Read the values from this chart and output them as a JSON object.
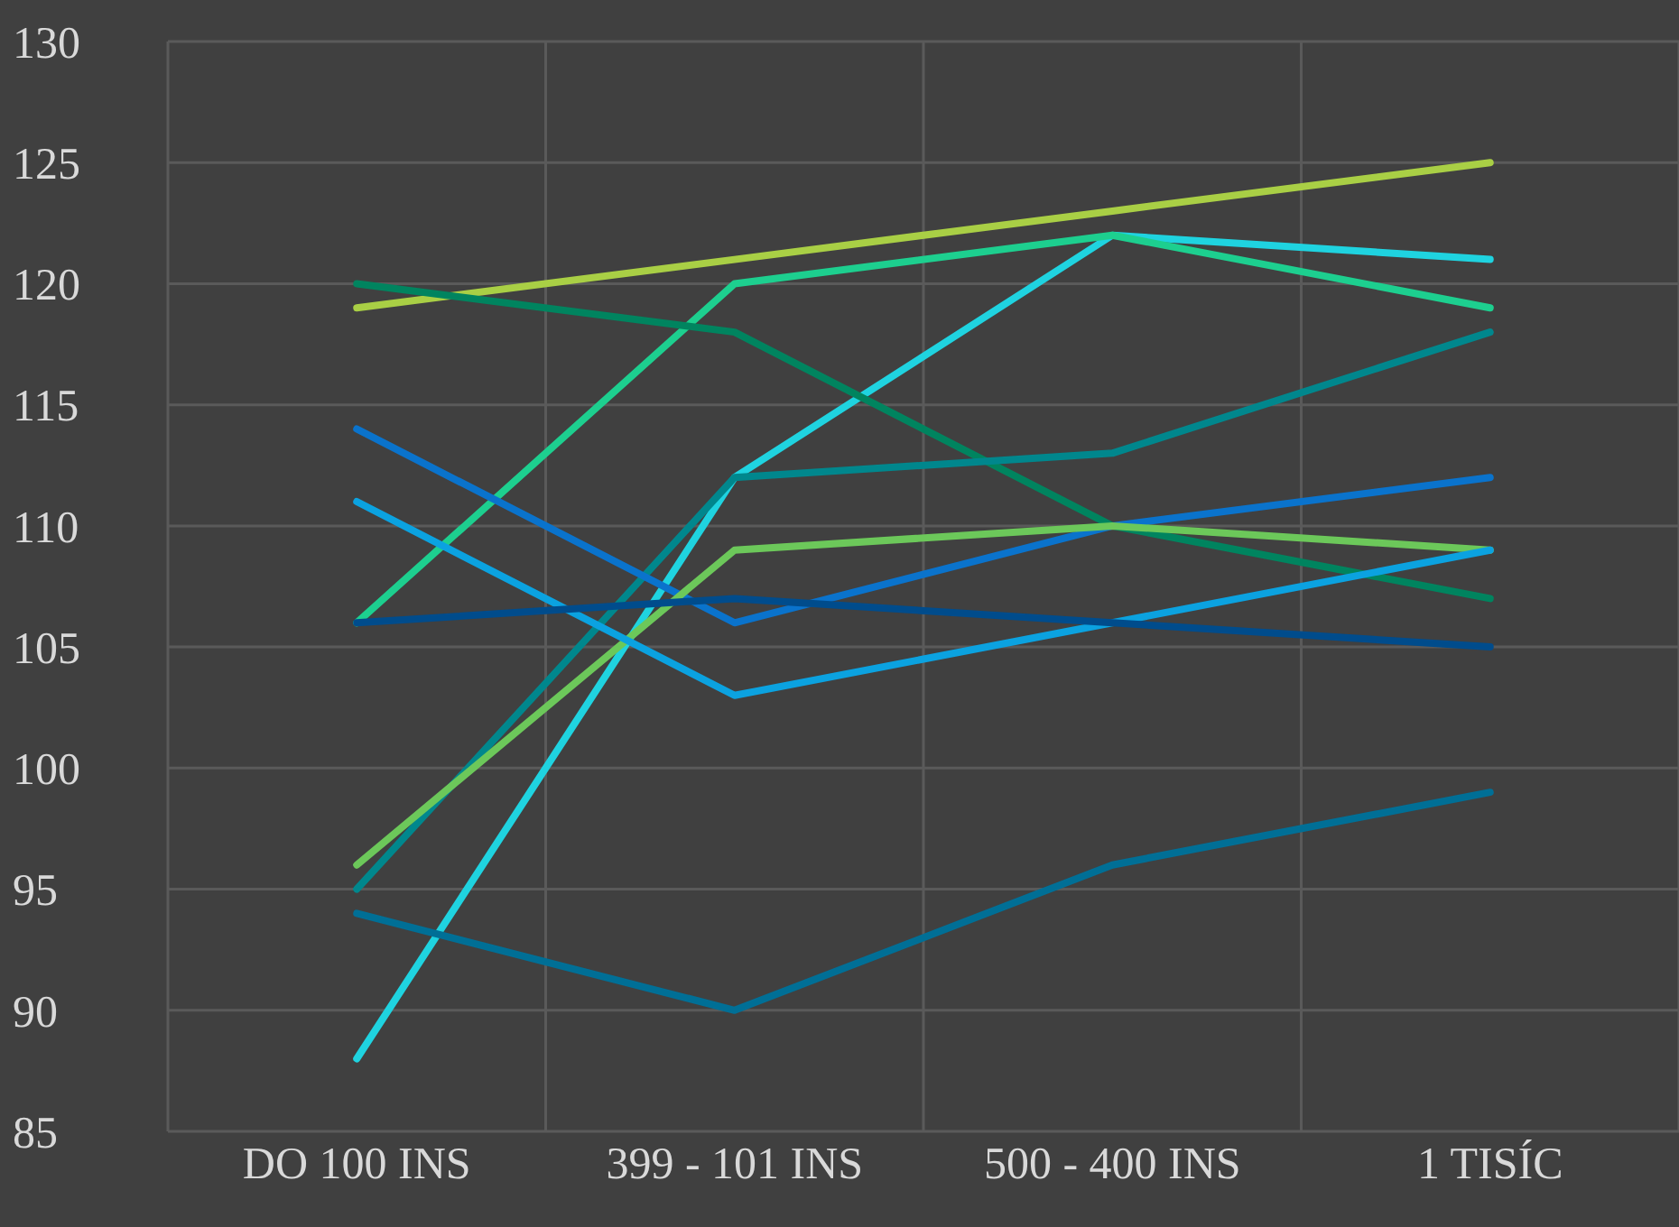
{
  "chart_data": {
    "type": "line",
    "categories": [
      "DO 100 INS",
      "399 - 101 INS",
      "500 - 400 INS",
      "1 TISÍC"
    ],
    "ylim": [
      85,
      130
    ],
    "yticks": [
      85,
      90,
      95,
      100,
      105,
      110,
      115,
      120,
      125,
      130
    ],
    "grid": true,
    "legend": false,
    "marker": "none",
    "line_style": "solid",
    "series": [
      {
        "color": "#a9cf45",
        "values": [
          119,
          121,
          123,
          125
        ]
      },
      {
        "color": "#1fd3e0",
        "values": [
          88,
          112,
          122,
          121
        ]
      },
      {
        "color": "#1dcf8f",
        "values": [
          106,
          120,
          122,
          119
        ]
      },
      {
        "color": "#00845f",
        "values": [
          120,
          118,
          110,
          107
        ]
      },
      {
        "color": "#00878d",
        "values": [
          95,
          112,
          113,
          118
        ]
      },
      {
        "color": "#0a73cc",
        "values": [
          114,
          106,
          110,
          112
        ]
      },
      {
        "color": "#6cc85a",
        "values": [
          96,
          109,
          110,
          109
        ]
      },
      {
        "color": "#0ba2e0",
        "values": [
          111,
          103,
          106,
          109
        ]
      },
      {
        "color": "#004c8c",
        "values": [
          106,
          107,
          106,
          105
        ]
      },
      {
        "color": "#006f96",
        "values": [
          94,
          90,
          96,
          99
        ]
      }
    ]
  }
}
